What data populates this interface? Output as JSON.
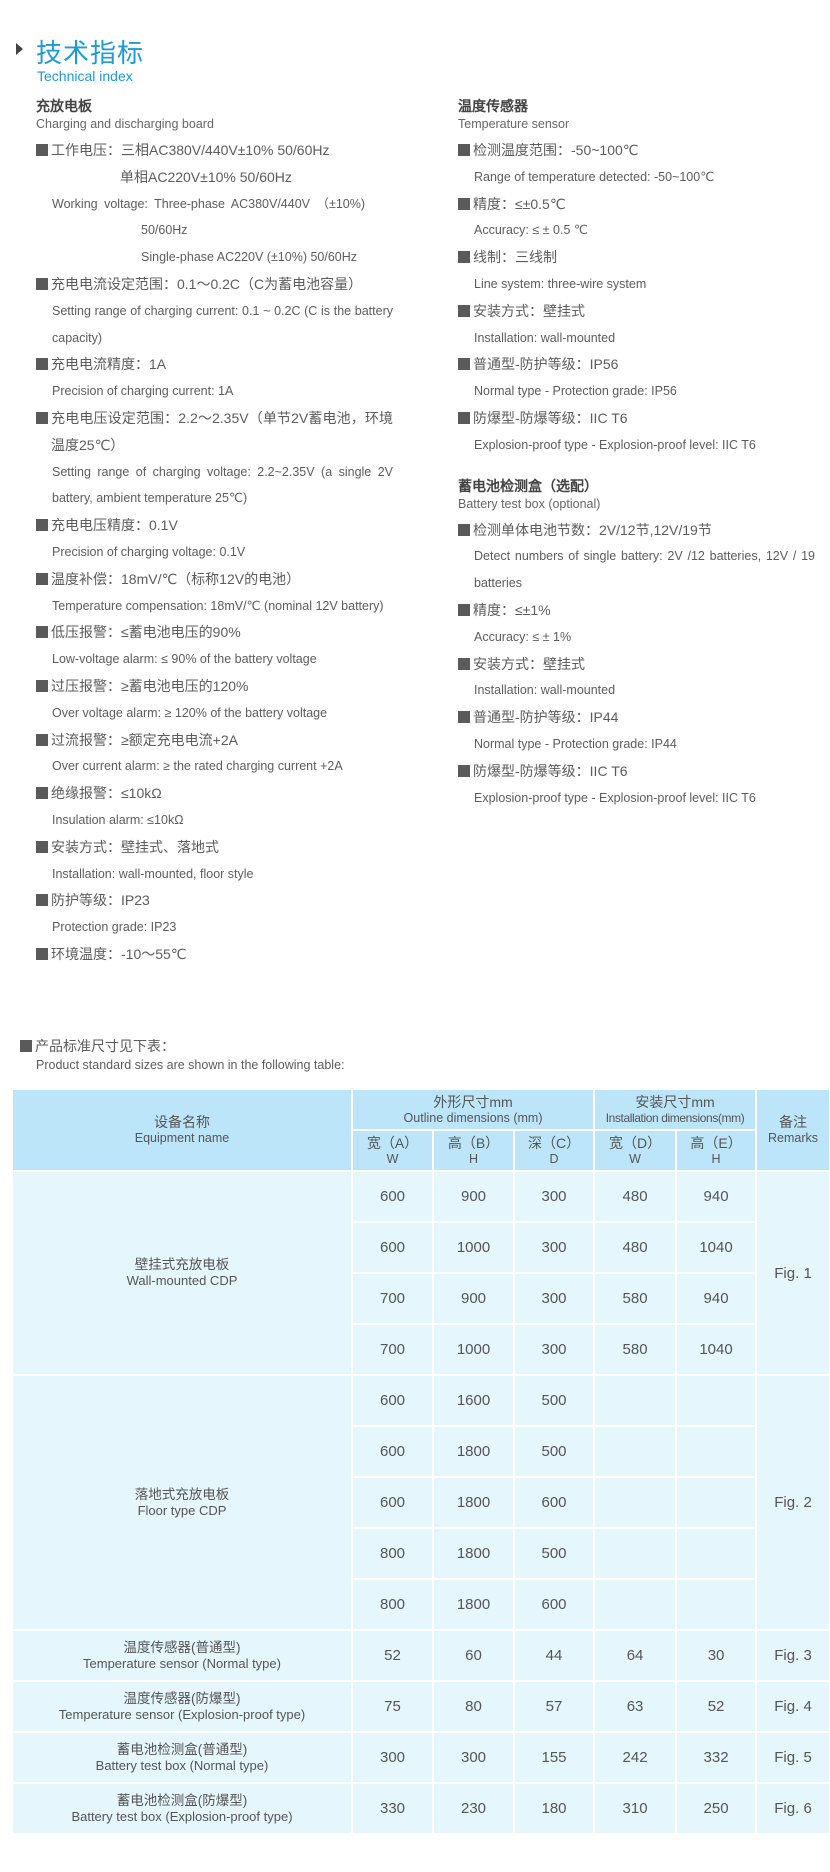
{
  "header": {
    "title_cn": "技术指标",
    "title_en": "Technical index"
  },
  "left": {
    "heading_cn": "充放电板",
    "heading_en": "Charging and discharging board",
    "working_voltage_cn_1": "工作电压：三相AC380V/440V±10%  50/60Hz",
    "working_voltage_cn_2": "单相AC220V±10%   50/60Hz",
    "working_voltage_en_1": "Working  voltage:  Three-phase  AC380V/440V （±10%)",
    "working_voltage_en_2": "50/60Hz",
    "working_voltage_en_3": "Single-phase AC220V (±10%) 50/60Hz",
    "items": [
      {
        "cn": "充电电流设定范围：0.1～0.2C（C为蓄电池容量）",
        "en": "Setting range of charging current: 0.1 ~ 0.2C (C is the battery capacity)"
      },
      {
        "cn": "充电电流精度：1A",
        "en": "Precision of charging current: 1A"
      },
      {
        "cn": "充电电压设定范围：2.2～2.35V（单节2V蓄电池，环境温度25℃）",
        "en": "Setting range of charging voltage: 2.2~2.35V (a single 2V battery, ambient temperature 25℃)"
      },
      {
        "cn": "充电电压精度：0.1V",
        "en": "Precision of charging voltage: 0.1V"
      },
      {
        "cn": "温度补偿：18mV/℃（标称12V的电池）",
        "en": "Temperature compensation: 18mV/℃ (nominal 12V battery)"
      },
      {
        "cn": "低压报警：≤蓄电池电压的90%",
        "en": "Low-voltage alarm: ≤ 90% of the battery voltage"
      },
      {
        "cn": "过压报警：≥蓄电池电压的120%",
        "en": "Over voltage alarm: ≥ 120% of the battery voltage"
      },
      {
        "cn": "过流报警：≥额定充电电流+2A",
        "en": "Over current alarm: ≥ the rated charging current +2A"
      },
      {
        "cn": "绝缘报警：≤10kΩ",
        "en": "Insulation alarm: ≤10kΩ"
      },
      {
        "cn": "安装方式：壁挂式、落地式",
        "en": "Installation: wall-mounted, floor style"
      },
      {
        "cn": "防护等级：IP23",
        "en": "Protection grade: IP23"
      },
      {
        "cn": "环境温度：-10～55℃",
        "en": ""
      }
    ]
  },
  "right": {
    "sections": [
      {
        "heading_cn": "温度传感器",
        "heading_en": "Temperature sensor",
        "items": [
          {
            "cn": "检测温度范围：-50~100℃",
            "en": "Range of temperature detected: -50~100℃"
          },
          {
            "cn": "精度：≤±0.5℃",
            "en": "Accuracy: ≤  ± 0.5 ℃"
          },
          {
            "cn": "线制：三线制",
            "en": "Line system: three-wire system"
          },
          {
            "cn": "安装方式：壁挂式",
            "en": "Installation: wall-mounted"
          },
          {
            "cn": "普通型-防护等级：IP56",
            "en": "Normal type - Protection grade: IP56"
          },
          {
            "cn": "防爆型-防爆等级：IIC T6",
            "en": "Explosion-proof type - Explosion-proof level: IIC T6"
          }
        ]
      },
      {
        "heading_cn": "蓄电池检测盒（选配）",
        "heading_en": "Battery test box (optional)",
        "items": [
          {
            "cn": "检测单体电池节数：2V/12节,12V/19节",
            "en": "Detect numbers of single battery: 2V /12 batteries, 12V / 19 batteries"
          },
          {
            "cn": "精度：≤±1%",
            "en": "Accuracy: ≤  ± 1%"
          },
          {
            "cn": "安装方式：壁挂式",
            "en": "Installation: wall-mounted"
          },
          {
            "cn": "普通型-防护等级：IP44",
            "en": "Normal type - Protection grade: IP44"
          },
          {
            "cn": "防爆型-防爆等级：IIC T6",
            "en": "Explosion-proof type - Explosion-proof level: IIC T6"
          }
        ]
      }
    ]
  },
  "note": {
    "cn": "产品标准尺寸见下表：",
    "en": "Product standard sizes are shown in the following table:"
  },
  "table": {
    "head": {
      "name_cn": "设备名称",
      "name_en": "Equipment name",
      "outline_cn": "外形尺寸mm",
      "outline_en": "Outline dimensions  (mm)",
      "install_cn": "安装尺寸mm",
      "install_en": "Installation dimensions(mm)",
      "remarks_cn": "备注",
      "remarks_en": "Remarks",
      "cols": [
        {
          "cn": "宽（A）",
          "en": "W"
        },
        {
          "cn": "高（B）",
          "en": "H"
        },
        {
          "cn": "深（C）",
          "en": "D"
        },
        {
          "cn": "宽（D）",
          "en": "W"
        },
        {
          "cn": "高（E）",
          "en": "H"
        }
      ]
    },
    "groups": [
      {
        "name_cn": "壁挂式充放电板",
        "name_en": "Wall-mounted CDP",
        "remark": "Fig. 1",
        "rows": [
          [
            "600",
            "900",
            "300",
            "480",
            "940"
          ],
          [
            "600",
            "1000",
            "300",
            "480",
            "1040"
          ],
          [
            "700",
            "900",
            "300",
            "580",
            "940"
          ],
          [
            "700",
            "1000",
            "300",
            "580",
            "1040"
          ]
        ]
      },
      {
        "name_cn": "落地式充放电板",
        "name_en": "Floor type CDP",
        "remark": "Fig. 2",
        "rows": [
          [
            "600",
            "1600",
            "500",
            "",
            ""
          ],
          [
            "600",
            "1800",
            "500",
            "",
            ""
          ],
          [
            "600",
            "1800",
            "600",
            "",
            ""
          ],
          [
            "800",
            "1800",
            "500",
            "",
            ""
          ],
          [
            "800",
            "1800",
            "600",
            "",
            ""
          ]
        ]
      },
      {
        "name_cn": "温度传感器(普通型)",
        "name_en": "Temperature sensor (Normal type)",
        "remark": "Fig. 3",
        "rows": [
          [
            "52",
            "60",
            "44",
            "64",
            "30"
          ]
        ]
      },
      {
        "name_cn": "温度传感器(防爆型)",
        "name_en": "Temperature sensor (Explosion-proof type)",
        "remark": "Fig. 4",
        "rows": [
          [
            "75",
            "80",
            "57",
            "63",
            "52"
          ]
        ]
      },
      {
        "name_cn": "蓄电池检测盒(普通型)",
        "name_en": "Battery test box (Normal type)",
        "remark": "Fig. 5",
        "rows": [
          [
            "300",
            "300",
            "155",
            "242",
            "332"
          ]
        ]
      },
      {
        "name_cn": "蓄电池检测盒(防爆型)",
        "name_en": "Battery test box (Explosion-proof type)",
        "remark": "Fig. 6",
        "rows": [
          [
            "330",
            "230",
            "180",
            "310",
            "250"
          ]
        ]
      }
    ]
  },
  "colors": {
    "accent": "#1b9bd7",
    "table_header": "#bce5f9",
    "table_body": "#e5f6fd",
    "text": "#5a5a5a"
  }
}
